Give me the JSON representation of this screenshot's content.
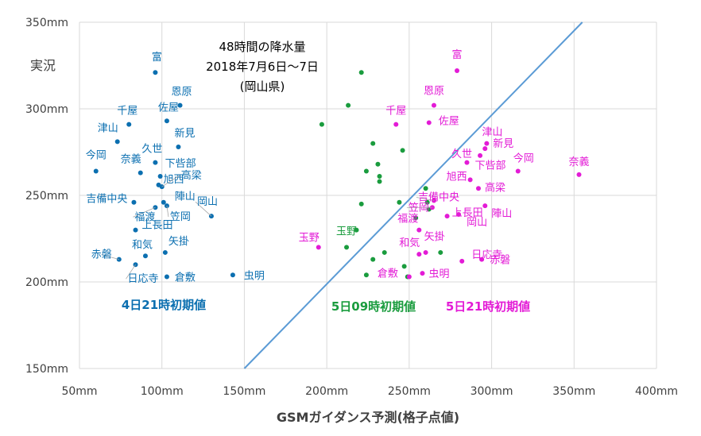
{
  "chart_data": {
    "type": "scatter",
    "xlabel": "GSMガイダンス予測(格子点値)",
    "ylabel": "実況",
    "annotation": [
      "48時間の降水量",
      "2018年7月6日～7日",
      "(岡山県)"
    ],
    "xlim": [
      50,
      400
    ],
    "ylim": [
      150,
      350
    ],
    "x_ticks": [
      "50mm",
      "100mm",
      "150mm",
      "200mm",
      "250mm",
      "300mm",
      "350mm",
      "400mm"
    ],
    "y_ticks": [
      "150mm",
      "200mm",
      "250mm",
      "300mm",
      "350mm"
    ],
    "grid": true,
    "reference_line": {
      "from": [
        150,
        150
      ],
      "to": [
        355,
        350
      ],
      "color": "#5b9bd5"
    },
    "series": [
      {
        "name": "4日21時初期値",
        "color": "#0b6fb0",
        "points": [
          {
            "label": "今岡",
            "x": 60,
            "y": 264
          },
          {
            "label": "富",
            "x": 96,
            "y": 321
          },
          {
            "label": "恩原",
            "x": 111,
            "y": 302
          },
          {
            "label": "千屋",
            "x": 80,
            "y": 291
          },
          {
            "label": "佐屋",
            "x": 103,
            "y": 293
          },
          {
            "label": "津山",
            "x": 73,
            "y": 281
          },
          {
            "label": "新見",
            "x": 110,
            "y": 278
          },
          {
            "label": "久世",
            "x": 96,
            "y": 269
          },
          {
            "label": "奈義",
            "x": 87,
            "y": 263
          },
          {
            "label": "下呰部",
            "x": 99,
            "y": 261
          },
          {
            "label": "旭西",
            "x": 98,
            "y": 256
          },
          {
            "label": "高梁",
            "x": 100,
            "y": 255
          },
          {
            "label": "吉備中央",
            "x": 83,
            "y": 246
          },
          {
            "label": "陣山",
            "x": 101,
            "y": 246
          },
          {
            "label": "岡山",
            "x": 130,
            "y": 238
          },
          {
            "label": "笠岡",
            "x": 103,
            "y": 244
          },
          {
            "label": "福渡",
            "x": 96,
            "y": 243
          },
          {
            "label": "上長田",
            "x": 84,
            "y": 230
          },
          {
            "label": "和気",
            "x": 90,
            "y": 215
          },
          {
            "label": "矢掛",
            "x": 102,
            "y": 217
          },
          {
            "label": "赤磐",
            "x": 74,
            "y": 213
          },
          {
            "label": "日応寺",
            "x": 84,
            "y": 210
          },
          {
            "label": "倉敷",
            "x": 103,
            "y": 203
          },
          {
            "label": "虫明",
            "x": 143,
            "y": 204
          }
        ]
      },
      {
        "name": "5日09時初期値",
        "color": "#1a9c3e",
        "points": [
          {
            "label": "玉野",
            "x": 212,
            "y": 220
          },
          {
            "x": 221,
            "y": 321
          },
          {
            "x": 213,
            "y": 302
          },
          {
            "x": 197,
            "y": 291
          },
          {
            "x": 228,
            "y": 280
          },
          {
            "x": 246,
            "y": 276
          },
          {
            "x": 231,
            "y": 268
          },
          {
            "x": 224,
            "y": 264
          },
          {
            "x": 232,
            "y": 261
          },
          {
            "x": 232,
            "y": 258
          },
          {
            "x": 260,
            "y": 254
          },
          {
            "x": 244,
            "y": 246
          },
          {
            "x": 261,
            "y": 246
          },
          {
            "x": 221,
            "y": 245
          },
          {
            "x": 262,
            "y": 242
          },
          {
            "x": 254,
            "y": 237
          },
          {
            "x": 218,
            "y": 230
          },
          {
            "x": 235,
            "y": 217
          },
          {
            "x": 269,
            "y": 217
          },
          {
            "x": 228,
            "y": 213
          },
          {
            "x": 247,
            "y": 209
          },
          {
            "x": 224,
            "y": 204
          },
          {
            "x": 249,
            "y": 203
          }
        ]
      },
      {
        "name": "5日21時初期値",
        "color": "#e31bd6",
        "points": [
          {
            "label": "富",
            "x": 279,
            "y": 322
          },
          {
            "label": "恩原",
            "x": 265,
            "y": 302
          },
          {
            "label": "千屋",
            "x": 242,
            "y": 291
          },
          {
            "label": "佐屋",
            "x": 262,
            "y": 292
          },
          {
            "label": "津山",
            "x": 297,
            "y": 280
          },
          {
            "label": "新見",
            "x": 296,
            "y": 277
          },
          {
            "label": "久世",
            "x": 293,
            "y": 273
          },
          {
            "label": "今岡",
            "x": 316,
            "y": 264
          },
          {
            "label": "奈義",
            "x": 353,
            "y": 262
          },
          {
            "label": "下呰部",
            "x": 285,
            "y": 269
          },
          {
            "label": "旭西",
            "x": 287,
            "y": 259
          },
          {
            "label": "高梁",
            "x": 292,
            "y": 254
          },
          {
            "label": "吉備中央",
            "x": 265,
            "y": 247
          },
          {
            "label": "陣山",
            "x": 296,
            "y": 244
          },
          {
            "label": "笠岡",
            "x": 264,
            "y": 243
          },
          {
            "label": "上長田",
            "x": 273,
            "y": 238
          },
          {
            "label": "福渡",
            "x": 256,
            "y": 230
          },
          {
            "label": "岡山",
            "x": 280,
            "y": 239
          },
          {
            "label": "玉野",
            "x": 195,
            "y": 220
          },
          {
            "label": "和気",
            "x": 256,
            "y": 216
          },
          {
            "label": "矢掛",
            "x": 260,
            "y": 217
          },
          {
            "label": "倉敷",
            "x": 250,
            "y": 203
          },
          {
            "label": "日応寺",
            "x": 282,
            "y": 212
          },
          {
            "label": "赤磐",
            "x": 294,
            "y": 213
          },
          {
            "label": "虫明",
            "x": 258,
            "y": 205
          }
        ]
      }
    ]
  }
}
